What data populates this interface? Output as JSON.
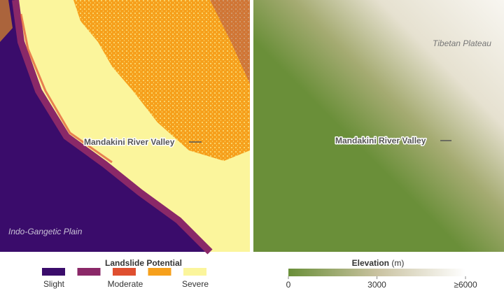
{
  "left_map": {
    "labels": {
      "valley": "Mandakini River Valley",
      "plain": "Indo-Gangetic Plain"
    }
  },
  "right_map": {
    "labels": {
      "valley": "Mandakini River Valley",
      "plateau": "Tibetan Plateau"
    }
  },
  "landslide_legend": {
    "title": "Landslide Potential",
    "labels": [
      "Slight",
      "Moderate",
      "Severe"
    ],
    "colors": [
      "#3a0c6b",
      "#8a2868",
      "#df4f30",
      "#f6a01c",
      "#fbf59c"
    ]
  },
  "elevation_legend": {
    "title": "Elevation",
    "unit": "(m)",
    "range": [
      0,
      6000
    ],
    "ticks": [
      0,
      3000,
      {
        "value": 6000,
        "label": "≥6000"
      }
    ],
    "colors": [
      "#6a8f39",
      "#c9c2a0",
      "#ffffff"
    ]
  }
}
